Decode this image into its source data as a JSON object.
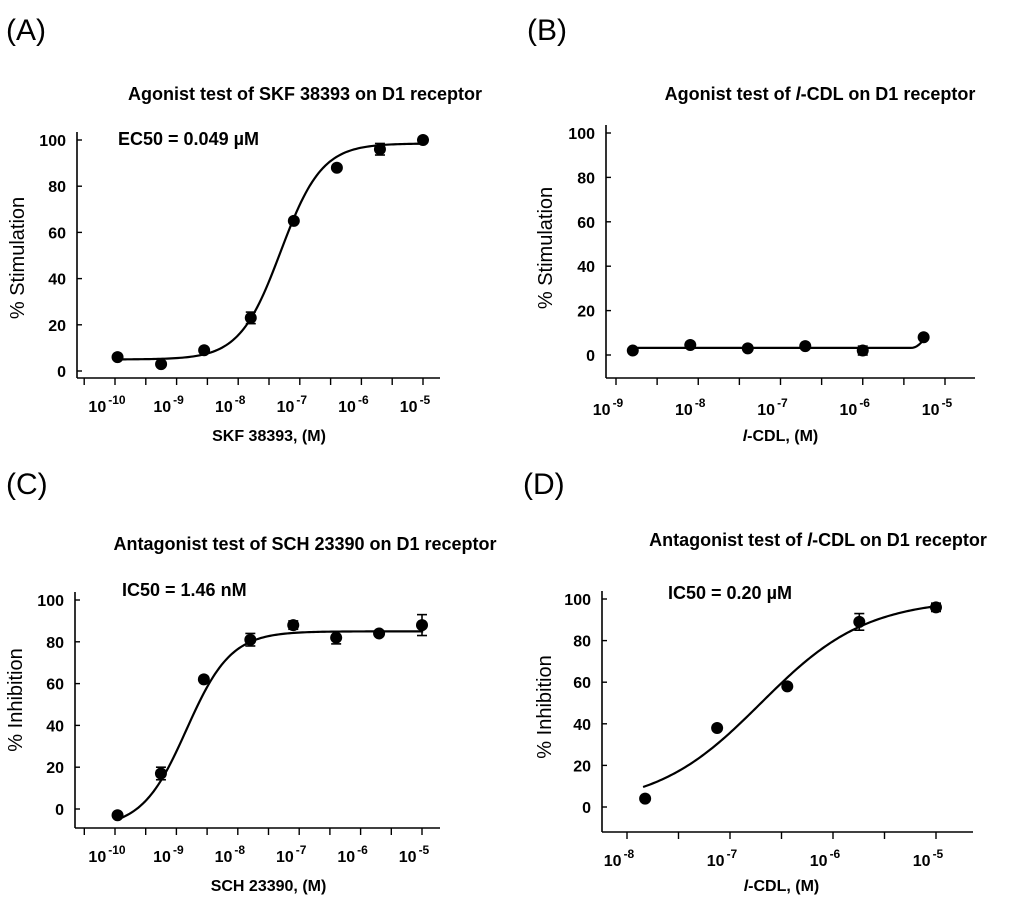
{
  "chart_data": [
    {
      "type": "scatter",
      "panel": "(A)",
      "title": "Agonist test of SKF 38393 on D1 receptor",
      "xlabel": "SKF 38393, (M)",
      "ylabel": "% Stimulation",
      "annotation": "EC50 = 0.049 µM",
      "x_scale": "log",
      "xlim": [
        1e-10,
        1e-05
      ],
      "x_ticks": [
        {
          "base": "10",
          "exp": "-10"
        },
        {
          "base": "10",
          "exp": "-9"
        },
        {
          "base": "10",
          "exp": "-8"
        },
        {
          "base": "10",
          "exp": "-7"
        },
        {
          "base": "10",
          "exp": "-6"
        },
        {
          "base": "10",
          "exp": "-5"
        }
      ],
      "y_ticks": [
        "0",
        "20",
        "40",
        "60",
        "80",
        "100"
      ],
      "ylim": [
        0,
        100
      ],
      "series": [
        {
          "x": [
            1.1e-10,
            5.6e-10,
            2.8e-09,
            1.6e-08,
            8e-08,
            4e-07,
            2e-06,
            1e-05
          ],
          "y": [
            6,
            3,
            9,
            23,
            65,
            88,
            96,
            100
          ],
          "err": [
            0,
            0,
            0,
            2.5,
            0,
            0,
            2.5,
            0
          ],
          "fit": {
            "model": "sigmoid",
            "bottom": 5,
            "top": 98.5,
            "ec50": 4.9e-08,
            "hill": 1.3
          }
        }
      ]
    },
    {
      "type": "scatter",
      "panel": "(B)",
      "title": "Agonist test of l-CDL on D1 receptor",
      "title_parts": [
        "Agonist test of ",
        "l",
        "-CDL on D1 receptor"
      ],
      "xlabel": "l-CDL, (M)",
      "xlabel_parts": [
        "l",
        "-CDL, (M)"
      ],
      "ylabel": "% Stimulation",
      "x_scale": "log",
      "xlim": [
        1e-09,
        1e-05
      ],
      "x_ticks": [
        {
          "base": "10",
          "exp": "-9"
        },
        {
          "base": "10",
          "exp": "-8"
        },
        {
          "base": "10",
          "exp": "-7"
        },
        {
          "base": "10",
          "exp": "-6"
        },
        {
          "base": "10",
          "exp": "-5"
        }
      ],
      "y_ticks": [
        "0",
        "20",
        "40",
        "60",
        "80",
        "100"
      ],
      "ylim": [
        0,
        100
      ],
      "series": [
        {
          "x": [
            1.6e-09,
            8e-09,
            4e-08,
            2e-07,
            1e-06,
            5.5e-06
          ],
          "y": [
            2,
            4.5,
            3,
            4,
            2,
            8
          ],
          "err": [
            0,
            0,
            0,
            0,
            2,
            0
          ],
          "fit": {
            "model": "flat",
            "level": 3.2,
            "uptick": 8
          }
        }
      ]
    },
    {
      "type": "scatter",
      "panel": "(C)",
      "title": "Antagonist test of SCH 23390 on D1 receptor",
      "xlabel": "SCH 23390, (M)",
      "ylabel": "% Inhibition",
      "annotation": "IC50 = 1.46 nM",
      "x_scale": "log",
      "xlim": [
        1e-10,
        1e-05
      ],
      "x_ticks": [
        {
          "base": "10",
          "exp": "-10"
        },
        {
          "base": "10",
          "exp": "-9"
        },
        {
          "base": "10",
          "exp": "-8"
        },
        {
          "base": "10",
          "exp": "-7"
        },
        {
          "base": "10",
          "exp": "-6"
        },
        {
          "base": "10",
          "exp": "-5"
        }
      ],
      "y_ticks": [
        "0",
        "20",
        "40",
        "60",
        "80",
        "100"
      ],
      "ylim": [
        0,
        100
      ],
      "series": [
        {
          "x": [
            1.1e-10,
            5.6e-10,
            2.8e-09,
            1.6e-08,
            8e-08,
            4e-07,
            2e-06,
            1e-05
          ],
          "y": [
            -3,
            17,
            62,
            81,
            88,
            82,
            84,
            88
          ],
          "err": [
            0,
            3,
            0,
            3,
            2,
            3,
            0,
            5
          ],
          "fit": {
            "model": "sigmoid",
            "bottom": -9,
            "top": 85,
            "ec50": 1.46e-09,
            "hill": 1.2
          }
        }
      ]
    },
    {
      "type": "scatter",
      "panel": "(D)",
      "title": "Antagonist test of l-CDL on D1 receptor",
      "title_parts": [
        "Antagonist test of ",
        "l",
        "-CDL on D1 receptor"
      ],
      "xlabel": "l-CDL, (M)",
      "xlabel_parts": [
        "l",
        "-CDL, (M)"
      ],
      "ylabel": "% Inhibition",
      "annotation": "IC50 = 0.20 µM",
      "x_scale": "log",
      "xlim": [
        1e-08,
        1e-05
      ],
      "x_ticks": [
        {
          "base": "10",
          "exp": "-8"
        },
        {
          "base": "10",
          "exp": "-7"
        },
        {
          "base": "10",
          "exp": "-6"
        },
        {
          "base": "10",
          "exp": "-5"
        }
      ],
      "y_ticks": [
        "0",
        "20",
        "40",
        "60",
        "80",
        "100"
      ],
      "ylim": [
        0,
        100
      ],
      "series": [
        {
          "x": [
            1.5e-08,
            7.5e-08,
            3.6e-07,
            1.8e-06,
            1e-05
          ],
          "y": [
            4,
            38,
            58,
            89,
            96
          ],
          "err": [
            0,
            0,
            0,
            4,
            2
          ],
          "fit": {
            "model": "sigmoid",
            "bottom": 0,
            "top": 100,
            "ec50": 2e-07,
            "hill": 0.85
          }
        }
      ]
    }
  ]
}
